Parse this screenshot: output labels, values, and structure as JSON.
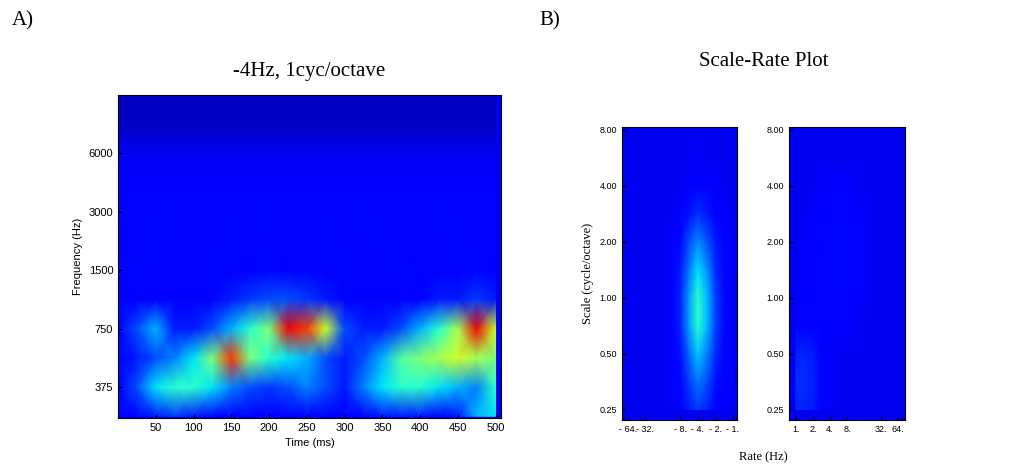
{
  "chart_data": [
    {
      "type": "heatmap",
      "panel": "A)",
      "title": "-4Hz, 1cyc/octave",
      "xlabel": "Time (ms)",
      "ylabel": "Frequency (Hz)",
      "log": "y",
      "xlim": [
        0,
        507
      ],
      "ylim": [
        260,
        12000
      ],
      "xticks": [
        50,
        100,
        150,
        200,
        250,
        300,
        350,
        400,
        450,
        500
      ],
      "yticks": [
        375,
        750,
        1500,
        3000,
        6000
      ],
      "zlim": [
        0,
        1
      ],
      "x": [
        0,
        25,
        50,
        75,
        100,
        125,
        150,
        175,
        200,
        225,
        250,
        275,
        300,
        325,
        350,
        375,
        400,
        425,
        450,
        475,
        500
      ],
      "y": [
        265,
        375,
        530,
        750,
        1060,
        1500,
        2120,
        3000,
        4240,
        6000,
        8480,
        12000
      ],
      "cells": [
        [
          0.12,
          0.12,
          0.15,
          0.18,
          0.15,
          0.12,
          0.12,
          0.12,
          0.12,
          0.12,
          0.12,
          0.12,
          0.12,
          0.12,
          0.15,
          0.15,
          0.15,
          0.12,
          0.15,
          0.3,
          0.35
        ],
        [
          0.12,
          0.2,
          0.35,
          0.4,
          0.4,
          0.35,
          0.25,
          0.2,
          0.18,
          0.2,
          0.25,
          0.2,
          0.15,
          0.25,
          0.35,
          0.4,
          0.4,
          0.35,
          0.3,
          0.25,
          0.4
        ],
        [
          0.12,
          0.15,
          0.2,
          0.25,
          0.35,
          0.5,
          0.85,
          0.5,
          0.4,
          0.35,
          0.3,
          0.2,
          0.15,
          0.2,
          0.3,
          0.45,
          0.5,
          0.55,
          0.6,
          0.55,
          0.5
        ],
        [
          0.12,
          0.2,
          0.3,
          0.15,
          0.15,
          0.2,
          0.3,
          0.4,
          0.5,
          0.9,
          0.85,
          0.6,
          0.2,
          0.15,
          0.15,
          0.2,
          0.3,
          0.4,
          0.55,
          0.9,
          0.6
        ],
        [
          0.12,
          0.12,
          0.12,
          0.12,
          0.12,
          0.12,
          0.15,
          0.18,
          0.2,
          0.2,
          0.18,
          0.15,
          0.12,
          0.12,
          0.12,
          0.12,
          0.12,
          0.15,
          0.15,
          0.18,
          0.15
        ],
        [
          0.12,
          0.13,
          0.12,
          0.11,
          0.12,
          0.13,
          0.12,
          0.12,
          0.13,
          0.12,
          0.11,
          0.12,
          0.13,
          0.12,
          0.12,
          0.13,
          0.12,
          0.11,
          0.12,
          0.13,
          0.12
        ],
        [
          0.12,
          0.12,
          0.13,
          0.12,
          0.11,
          0.12,
          0.13,
          0.12,
          0.12,
          0.11,
          0.12,
          0.13,
          0.12,
          0.12,
          0.13,
          0.12,
          0.11,
          0.12,
          0.13,
          0.12,
          0.12
        ],
        [
          0.12,
          0.11,
          0.12,
          0.13,
          0.12,
          0.12,
          0.11,
          0.12,
          0.13,
          0.12,
          0.12,
          0.12,
          0.11,
          0.13,
          0.12,
          0.12,
          0.12,
          0.13,
          0.12,
          0.11,
          0.12
        ],
        [
          0.11,
          0.12,
          0.12,
          0.11,
          0.12,
          0.12,
          0.12,
          0.11,
          0.12,
          0.12,
          0.11,
          0.12,
          0.12,
          0.12,
          0.11,
          0.12,
          0.12,
          0.12,
          0.11,
          0.12,
          0.12
        ],
        [
          0.1,
          0.1,
          0.1,
          0.1,
          0.1,
          0.1,
          0.1,
          0.1,
          0.1,
          0.1,
          0.1,
          0.1,
          0.1,
          0.1,
          0.1,
          0.1,
          0.1,
          0.1,
          0.1,
          0.1,
          0.1
        ],
        [
          0.06,
          0.06,
          0.06,
          0.06,
          0.06,
          0.06,
          0.06,
          0.06,
          0.06,
          0.06,
          0.06,
          0.06,
          0.06,
          0.06,
          0.06,
          0.06,
          0.06,
          0.06,
          0.06,
          0.06,
          0.06
        ],
        [
          0.06,
          0.06,
          0.06,
          0.06,
          0.06,
          0.06,
          0.06,
          0.06,
          0.06,
          0.06,
          0.06,
          0.06,
          0.06,
          0.06,
          0.06,
          0.06,
          0.06,
          0.06,
          0.06,
          0.06,
          0.06
        ]
      ]
    },
    {
      "type": "heatmap",
      "panel": "B)",
      "title": "Scale-Rate Plot",
      "xlabel": "Rate (Hz)",
      "ylabel": "Scale (cycle/octave)",
      "log": true,
      "xlim": [
        -80,
        -0.85
      ],
      "ylim": [
        0.22,
        8.3
      ],
      "xticks": [
        {
          "value": -64,
          "label": "- 64."
        },
        {
          "value": -32,
          "label": "- 32."
        },
        {
          "value": -8,
          "label": "- 8."
        },
        {
          "value": -4,
          "label": "- 4."
        },
        {
          "value": -2,
          "label": "- 2."
        },
        {
          "value": -1,
          "label": "- 1."
        }
      ],
      "yticks": [
        0.25,
        {
          "value": 0.5,
          "label": "0.50"
        },
        {
          "value": 1,
          "label": "1.00"
        },
        {
          "value": 2,
          "label": "2.00"
        },
        {
          "value": 4,
          "label": "4.00"
        },
        {
          "value": 8,
          "label": "8.00"
        }
      ],
      "zlim": [
        0,
        1
      ],
      "x": [
        -64,
        -45,
        -32,
        -22,
        -16,
        -11,
        -8,
        -5.7,
        -4,
        -2.8,
        -2,
        -1.4,
        -1
      ],
      "y": [
        0.25,
        0.35,
        0.5,
        0.71,
        1,
        1.41,
        2,
        2.83,
        4,
        5.66,
        8
      ],
      "cells": [
        [
          0.1,
          0.1,
          0.1,
          0.1,
          0.1,
          0.1,
          0.12,
          0.15,
          0.18,
          0.16,
          0.12,
          0.11,
          0.1
        ],
        [
          0.1,
          0.1,
          0.1,
          0.1,
          0.1,
          0.11,
          0.13,
          0.18,
          0.24,
          0.2,
          0.14,
          0.11,
          0.11
        ],
        [
          0.1,
          0.1,
          0.1,
          0.1,
          0.1,
          0.11,
          0.14,
          0.23,
          0.32,
          0.25,
          0.17,
          0.12,
          0.11
        ],
        [
          0.1,
          0.1,
          0.1,
          0.1,
          0.1,
          0.12,
          0.16,
          0.28,
          0.4,
          0.31,
          0.19,
          0.13,
          0.12
        ],
        [
          0.1,
          0.1,
          0.1,
          0.1,
          0.1,
          0.12,
          0.16,
          0.28,
          0.4,
          0.31,
          0.19,
          0.13,
          0.12
        ],
        [
          0.1,
          0.1,
          0.1,
          0.1,
          0.1,
          0.11,
          0.15,
          0.24,
          0.34,
          0.27,
          0.17,
          0.12,
          0.11
        ],
        [
          0.1,
          0.1,
          0.1,
          0.1,
          0.1,
          0.11,
          0.13,
          0.2,
          0.26,
          0.21,
          0.15,
          0.12,
          0.11
        ],
        [
          0.1,
          0.1,
          0.1,
          0.1,
          0.1,
          0.1,
          0.11,
          0.14,
          0.17,
          0.15,
          0.12,
          0.11,
          0.1
        ],
        [
          0.1,
          0.1,
          0.1,
          0.1,
          0.1,
          0.1,
          0.1,
          0.11,
          0.12,
          0.11,
          0.11,
          0.1,
          0.1
        ],
        [
          0.1,
          0.1,
          0.1,
          0.1,
          0.1,
          0.1,
          0.1,
          0.1,
          0.11,
          0.1,
          0.1,
          0.1,
          0.1
        ],
        [
          0.1,
          0.1,
          0.1,
          0.1,
          0.1,
          0.1,
          0.1,
          0.1,
          0.1,
          0.1,
          0.1,
          0.1,
          0.1
        ]
      ]
    },
    {
      "type": "heatmap",
      "log": true,
      "xlim": [
        0.75,
        85
      ],
      "ylim": [
        0.22,
        8.3
      ],
      "xticks": [
        {
          "value": 1,
          "label": "1."
        },
        {
          "value": 2,
          "label": "2."
        },
        {
          "value": 4,
          "label": "4."
        },
        {
          "value": 8,
          "label": "8."
        },
        {
          "value": 32,
          "label": "32."
        },
        {
          "value": 64,
          "label": "64."
        }
      ],
      "yticks": [
        0.25,
        {
          "value": 0.5,
          "label": "0.50"
        },
        {
          "value": 1,
          "label": "1.00"
        },
        {
          "value": 2,
          "label": "2.00"
        },
        {
          "value": 4,
          "label": "4.00"
        },
        {
          "value": 8,
          "label": "8.00"
        }
      ],
      "zlim": [
        0,
        1
      ],
      "x": [
        1,
        1.41,
        2,
        2.83,
        4,
        5.66,
        8,
        11.3,
        16,
        22.6,
        32,
        45,
        64
      ],
      "y": [
        0.25,
        0.35,
        0.5,
        0.71,
        1,
        1.41,
        2,
        2.83,
        4,
        5.66,
        8
      ],
      "cells": [
        [
          0.16,
          0.16,
          0.15,
          0.12,
          0.11,
          0.1,
          0.1,
          0.1,
          0.1,
          0.1,
          0.1,
          0.1,
          0.1
        ],
        [
          0.17,
          0.17,
          0.16,
          0.12,
          0.11,
          0.1,
          0.1,
          0.1,
          0.1,
          0.1,
          0.1,
          0.1,
          0.1
        ],
        [
          0.16,
          0.16,
          0.15,
          0.12,
          0.11,
          0.1,
          0.1,
          0.1,
          0.1,
          0.1,
          0.1,
          0.1,
          0.1
        ],
        [
          0.12,
          0.12,
          0.12,
          0.11,
          0.11,
          0.11,
          0.11,
          0.11,
          0.1,
          0.1,
          0.1,
          0.1,
          0.1
        ],
        [
          0.11,
          0.11,
          0.11,
          0.11,
          0.12,
          0.12,
          0.12,
          0.12,
          0.11,
          0.1,
          0.1,
          0.1,
          0.1
        ],
        [
          0.1,
          0.11,
          0.11,
          0.12,
          0.12,
          0.13,
          0.13,
          0.12,
          0.11,
          0.1,
          0.1,
          0.1,
          0.1
        ],
        [
          0.1,
          0.11,
          0.11,
          0.12,
          0.13,
          0.13,
          0.13,
          0.12,
          0.11,
          0.1,
          0.1,
          0.1,
          0.1
        ],
        [
          0.1,
          0.1,
          0.11,
          0.11,
          0.12,
          0.12,
          0.12,
          0.11,
          0.11,
          0.1,
          0.1,
          0.1,
          0.1
        ],
        [
          0.1,
          0.1,
          0.1,
          0.11,
          0.11,
          0.11,
          0.11,
          0.11,
          0.1,
          0.1,
          0.1,
          0.1,
          0.1
        ],
        [
          0.1,
          0.1,
          0.1,
          0.1,
          0.1,
          0.1,
          0.1,
          0.1,
          0.1,
          0.1,
          0.1,
          0.1,
          0.1
        ],
        [
          0.1,
          0.1,
          0.1,
          0.1,
          0.1,
          0.1,
          0.1,
          0.1,
          0.1,
          0.1,
          0.1,
          0.1,
          0.1
        ]
      ]
    }
  ]
}
